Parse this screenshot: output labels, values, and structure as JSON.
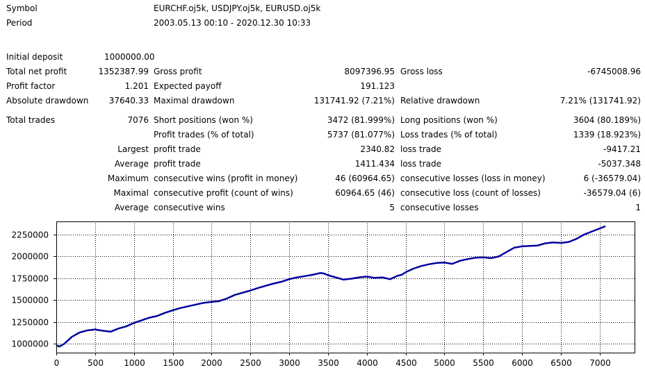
{
  "header": {
    "symbol_label": "Symbol",
    "symbol_value": "EURCHF.oj5k, USDJPY.oj5k, EURUSD.oj5k",
    "period_label": "Period",
    "period_value": "2003.05.13 00:10 - 2020.12.30 10:33"
  },
  "stats": {
    "initial_deposit_label": "Initial deposit",
    "initial_deposit": "1000000.00",
    "total_net_profit_label": "Total net profit",
    "total_net_profit": "1352387.99",
    "gross_profit_label": "Gross profit",
    "gross_profit": "8097396.95",
    "gross_loss_label": "Gross loss",
    "gross_loss": "-6745008.96",
    "profit_factor_label": "Profit factor",
    "profit_factor": "1.201",
    "expected_payoff_label": "Expected payoff",
    "expected_payoff": "191.123",
    "absolute_drawdown_label": "Absolute drawdown",
    "absolute_drawdown": "37640.33",
    "maximal_drawdown_label": "Maximal drawdown",
    "maximal_drawdown": "131741.92 (7.21%)",
    "relative_drawdown_label": "Relative drawdown",
    "relative_drawdown": "7.21% (131741.92)",
    "total_trades_label": "Total trades",
    "total_trades": "7076",
    "short_positions_label": "Short positions (won %)",
    "short_positions": "3472 (81.999%)",
    "long_positions_label": "Long positions (won %)",
    "long_positions": "3604 (80.189%)",
    "profit_trades_label": "Profit trades (% of total)",
    "profit_trades": "5737 (81.077%)",
    "loss_trades_label": "Loss trades (% of total)",
    "loss_trades": "1339 (18.923%)",
    "largest_label": "Largest",
    "largest_profit_label": "profit trade",
    "largest_profit": "2340.82",
    "largest_loss_label": "loss trade",
    "largest_loss": "-9417.21",
    "average_label": "Average",
    "average_profit_label": "profit trade",
    "average_profit": "1411.434",
    "average_loss_label": "loss trade",
    "average_loss": "-5037.348",
    "maximum_label": "Maximum",
    "max_cons_wins_label": "consecutive wins (profit in money)",
    "max_cons_wins": "46 (60964.65)",
    "max_cons_losses_label": "consecutive losses (loss in money)",
    "max_cons_losses": "6 (-36579.04)",
    "maximal_label": "Maximal",
    "maximal_cons_profit_label": "consecutive profit (count of wins)",
    "maximal_cons_profit": "60964.65 (46)",
    "maximal_cons_loss_label": "consecutive loss (count of losses)",
    "maximal_cons_loss": "-36579.04 (6)",
    "average2_label": "Average",
    "avg_cons_wins_label": "consecutive wins",
    "avg_cons_wins": "5",
    "avg_cons_losses_label": "consecutive losses",
    "avg_cons_losses": "1"
  },
  "chart_data": {
    "type": "line",
    "title": "",
    "xlabel": "",
    "ylabel": "",
    "xlim": [
      0,
      7450
    ],
    "ylim": [
      900000,
      2400000
    ],
    "x_ticks": [
      0,
      500,
      1000,
      1500,
      2000,
      2500,
      3000,
      3500,
      4000,
      4500,
      5000,
      5500,
      6000,
      6500,
      7000
    ],
    "y_ticks": [
      1000000,
      1250000,
      1500000,
      1750000,
      2000000,
      2250000
    ],
    "grid": true,
    "line_color": "#0000a0",
    "series": [
      {
        "x": [
          0,
          40,
          100,
          200,
          300,
          400,
          500,
          600,
          700,
          800,
          900,
          1000,
          1100,
          1200,
          1300,
          1400,
          1500,
          1600,
          1700,
          1800,
          1900,
          2000,
          2100,
          2200,
          2300,
          2400,
          2500,
          2600,
          2700,
          2800,
          2900,
          3000,
          3100,
          3200,
          3300,
          3400,
          3450,
          3500,
          3600,
          3700,
          3800,
          3900,
          4000,
          4100,
          4200,
          4300,
          4400,
          4450,
          4500,
          4600,
          4700,
          4800,
          4900,
          5000,
          5100,
          5200,
          5300,
          5400,
          5500,
          5600,
          5700,
          5800,
          5900,
          6000,
          6100,
          6200,
          6300,
          6400,
          6500,
          6600,
          6700,
          6800,
          6900,
          7000,
          7076
        ],
        "y": [
          985000,
          970000,
          1000000,
          1080000,
          1130000,
          1155000,
          1165000,
          1150000,
          1140000,
          1175000,
          1200000,
          1240000,
          1270000,
          1300000,
          1320000,
          1355000,
          1385000,
          1410000,
          1430000,
          1450000,
          1470000,
          1480000,
          1490000,
          1520000,
          1560000,
          1585000,
          1610000,
          1640000,
          1665000,
          1690000,
          1710000,
          1740000,
          1760000,
          1775000,
          1790000,
          1810000,
          1805000,
          1785000,
          1760000,
          1735000,
          1745000,
          1760000,
          1770000,
          1755000,
          1760000,
          1740000,
          1780000,
          1790000,
          1820000,
          1860000,
          1890000,
          1910000,
          1925000,
          1930000,
          1915000,
          1950000,
          1970000,
          1985000,
          1990000,
          1980000,
          2000000,
          2050000,
          2100000,
          2115000,
          2120000,
          2125000,
          2150000,
          2160000,
          2155000,
          2165000,
          2200000,
          2250000,
          2285000,
          2320000,
          2345000
        ]
      }
    ]
  }
}
